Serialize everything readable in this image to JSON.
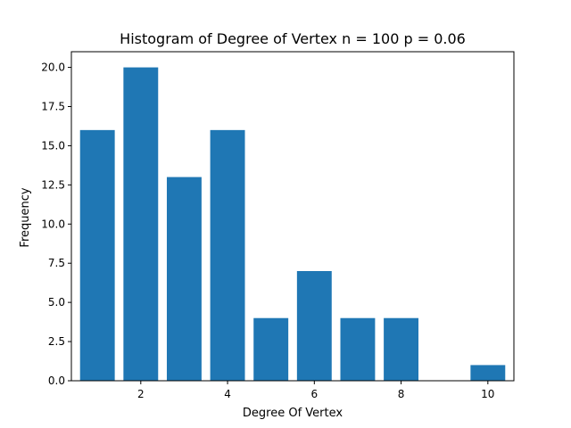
{
  "chart_data": {
    "type": "bar",
    "title": "Histogram of Degree of Vertex n = 100 p = 0.06",
    "xlabel": "Degree Of Vertex",
    "ylabel": "Frequency",
    "x": [
      1,
      2,
      3,
      4,
      5,
      6,
      7,
      8,
      10
    ],
    "values": [
      16,
      20,
      13,
      16,
      4,
      7,
      4,
      4,
      1
    ],
    "xlim": [
      0.4,
      10.6
    ],
    "ylim": [
      0,
      21
    ],
    "xticks": [
      2,
      4,
      6,
      8,
      10
    ],
    "yticks": [
      0,
      2.5,
      5,
      7.5,
      10,
      12.5,
      15,
      17.5,
      20
    ],
    "xtick_labels": [
      "2",
      "4",
      "6",
      "8",
      "10"
    ],
    "ytick_labels": [
      "0.0",
      "2.5",
      "5.0",
      "7.5",
      "10.0",
      "12.5",
      "15.0",
      "17.5",
      "20.0"
    ],
    "bar_width": 0.8,
    "bar_color": "#1f77b4",
    "grid": false,
    "legend": "none"
  }
}
